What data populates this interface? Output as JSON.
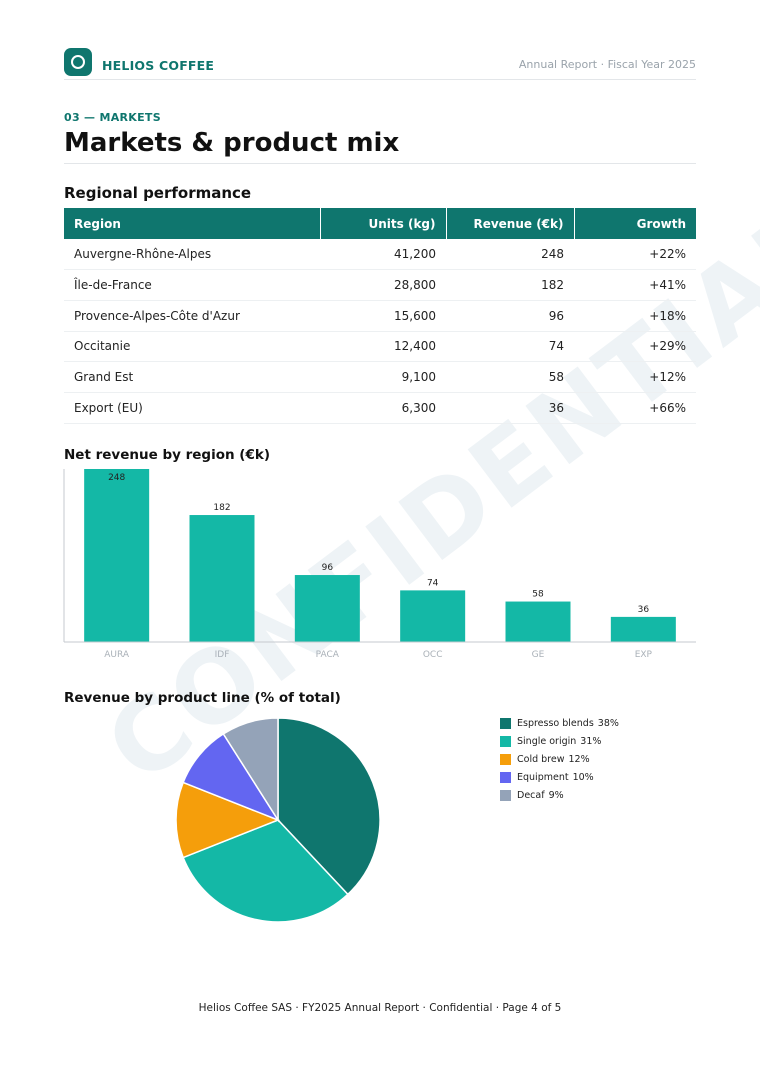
{
  "header": {
    "brand": "HELIOS COFFEE",
    "report_title": "Annual Report · Fiscal Year 2025",
    "watermark": "CONFIDENTIAL"
  },
  "section": {
    "label": "03 — MARKETS",
    "title": "Markets & product mix"
  },
  "regional": {
    "heading": "Regional performance",
    "columns": [
      "Region",
      "Units (kg)",
      "Revenue (€k)",
      "Growth"
    ],
    "rows": [
      [
        "Auvergne-Rhône-Alpes",
        "41,200",
        "248",
        "+22%"
      ],
      [
        "Île-de-France",
        "28,800",
        "182",
        "+41%"
      ],
      [
        "Provence-Alpes-Côte d'Azur",
        "15,600",
        "96",
        "+18%"
      ],
      [
        "Occitanie",
        "12,400",
        "74",
        "+29%"
      ],
      [
        "Grand Est",
        "9,100",
        "58",
        "+12%"
      ],
      [
        "Export (EU)",
        "6,300",
        "36",
        "+66%"
      ]
    ]
  },
  "colors": {
    "brand": "#0f766e",
    "bar": "#14b8a6",
    "pie": [
      "#0f766e",
      "#14b8a6",
      "#f59e0b",
      "#6366f1",
      "#94a3b8"
    ]
  },
  "chart_data": [
    {
      "type": "bar",
      "title": "Net revenue by region (€k)",
      "categories": [
        "AURA",
        "IDF",
        "PACA",
        "OCC",
        "GE",
        "EXP"
      ],
      "values": [
        248,
        182,
        96,
        74,
        58,
        36
      ],
      "ylim": [
        0,
        248
      ],
      "data_labels": true,
      "grid": false
    },
    {
      "type": "pie",
      "title": "Revenue by product line (% of total)",
      "labels": [
        "Espresso blends",
        "Single origin",
        "Cold brew",
        "Equipment",
        "Decaf"
      ],
      "values": [
        38,
        31,
        12,
        10,
        9
      ],
      "value_labels": [
        "38%",
        "31%",
        "12%",
        "10%",
        "9%"
      ],
      "legend": "right"
    }
  ],
  "footer": "Helios Coffee SAS  ·  FY2025 Annual Report  ·  Confidential  ·  Page 4 of 5"
}
